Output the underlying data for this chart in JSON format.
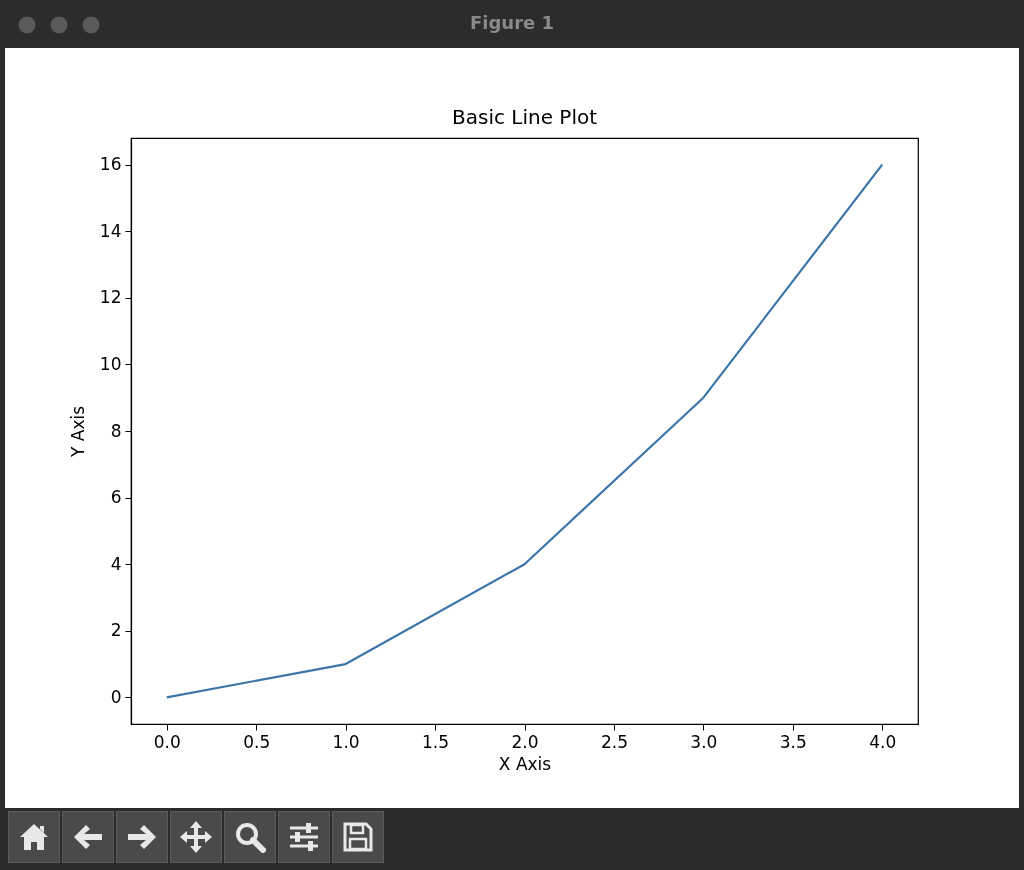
{
  "chart_data": {
    "type": "line",
    "title": "Basic Line Plot",
    "xlabel": "X Axis",
    "ylabel": "Y Axis",
    "annotations": [
      "Figure 1"
    ],
    "x": [
      0,
      1,
      2,
      3,
      4
    ],
    "series": [
      {
        "color": "#3d75a9",
        "values": [
          0,
          1,
          4,
          9,
          16
        ]
      }
    ],
    "xlim": [
      -0.2,
      4.2
    ],
    "xticks": [
      {
        "value": 0,
        "label": "0.0"
      },
      {
        "value": 0.5,
        "label": "0.5"
      },
      {
        "value": 1,
        "label": "1.0"
      },
      {
        "value": 1.5,
        "label": "1.5"
      },
      {
        "value": 2,
        "label": "2.0"
      },
      {
        "value": 2.5,
        "label": "2.5"
      },
      {
        "value": 3,
        "label": "3.0"
      },
      {
        "value": 3.5,
        "label": "3.5"
      },
      {
        "value": 4,
        "label": "4.0"
      }
    ],
    "ylim": [
      -0.8,
      16.8
    ],
    "yticks": [
      0,
      2,
      4,
      6,
      8,
      10,
      12,
      14,
      16
    ],
    "grid": false,
    "legend": false,
    "marker": "none",
    "line_style": "solid"
  }
}
